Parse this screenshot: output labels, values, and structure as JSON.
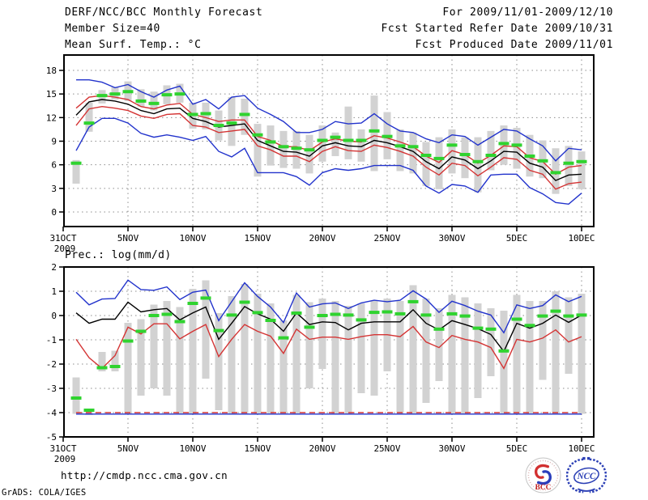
{
  "header": {
    "title": "DERF/NCC/BCC Monthly Forecast",
    "member_size": "Member Size=40",
    "for_range": "For 2009/11/01-2009/12/10",
    "refer_date": "Fcst Started Refer Date 2009/10/31",
    "produced_date": "Fcst Produced Date 2009/11/01"
  },
  "footer": {
    "url": "http://cmdp.ncc.cma.gov.cn",
    "credit": "GrADS: COLA/IGES"
  },
  "logos": {
    "bcc_label": "BCC",
    "ncc_label": "NCC"
  },
  "colors": {
    "blue": "#2233cc",
    "red": "#d43434",
    "black": "#000000",
    "green": "#2fd32f",
    "gray_bar": "#d2d2d2",
    "grid": "#8c8c8c"
  },
  "chart_data": [
    {
      "type": "line",
      "name": "surface-temperature-forecast",
      "title": "Mean Surf. Temp.: °C",
      "ylabel": "°C",
      "ylim": [
        -1.8,
        20
      ],
      "yticks": [
        0,
        3,
        6,
        9,
        12,
        15,
        18
      ],
      "grid": "dotted",
      "x_tick_labels": [
        "31OCT",
        "5NOV",
        "10NOV",
        "15NOV",
        "20NOV",
        "25NOV",
        "30NOV",
        "5DEC",
        "10DEC"
      ],
      "x_tick_days": [
        0,
        5,
        10,
        15,
        20,
        25,
        30,
        35,
        40
      ],
      "year_label": "2009",
      "dates": [
        "2009-11-01",
        "2009-11-02",
        "2009-11-03",
        "2009-11-04",
        "2009-11-05",
        "2009-11-06",
        "2009-11-07",
        "2009-11-08",
        "2009-11-09",
        "2009-11-10",
        "2009-11-11",
        "2009-11-12",
        "2009-11-13",
        "2009-11-14",
        "2009-11-15",
        "2009-11-16",
        "2009-11-17",
        "2009-11-18",
        "2009-11-19",
        "2009-11-20",
        "2009-11-21",
        "2009-11-22",
        "2009-11-23",
        "2009-11-24",
        "2009-11-25",
        "2009-11-26",
        "2009-11-27",
        "2009-11-28",
        "2009-11-29",
        "2009-11-30",
        "2009-12-01",
        "2009-12-02",
        "2009-12-03",
        "2009-12-04",
        "2009-12-05",
        "2009-12-06",
        "2009-12-07",
        "2009-12-08",
        "2009-12-09",
        "2009-12-10"
      ],
      "series": [
        {
          "name": "ensemble-max",
          "color": "blue",
          "values": [
            16.8,
            16.8,
            16.5,
            15.8,
            16.2,
            15.3,
            14.6,
            15.5,
            16.0,
            13.7,
            14.3,
            13.1,
            14.6,
            14.8,
            13.2,
            12.4,
            11.5,
            10.1,
            10.1,
            10.5,
            11.5,
            11.2,
            11.3,
            12.5,
            11.2,
            10.3,
            10.1,
            9.3,
            8.8,
            9.8,
            9.6,
            8.5,
            9.5,
            10.5,
            10.3,
            9.3,
            8.4,
            6.5,
            8.1,
            7.9
          ]
        },
        {
          "name": "upper-quartile",
          "color": "red",
          "values": [
            13.2,
            14.6,
            14.8,
            14.6,
            14.3,
            13.4,
            13.1,
            13.6,
            13.8,
            12.4,
            12.0,
            11.5,
            11.7,
            11.7,
            9.6,
            9.1,
            8.3,
            8.3,
            7.8,
            8.9,
            9.3,
            9.0,
            8.9,
            9.7,
            9.4,
            8.9,
            8.3,
            7.1,
            6.3,
            7.8,
            7.3,
            6.2,
            7.2,
            8.4,
            8.3,
            6.9,
            6.4,
            4.8,
            5.7,
            5.9
          ]
        },
        {
          "name": "ensemble-mean",
          "color": "black",
          "values": [
            12.3,
            14.0,
            14.3,
            14.1,
            13.7,
            12.9,
            12.5,
            13.1,
            13.2,
            11.9,
            11.5,
            10.8,
            11.0,
            11.2,
            9.1,
            8.4,
            7.7,
            7.6,
            7.1,
            8.4,
            8.8,
            8.4,
            8.3,
            9.1,
            8.8,
            8.3,
            7.7,
            6.4,
            5.5,
            7.0,
            6.6,
            5.5,
            6.5,
            7.7,
            7.6,
            6.2,
            5.7,
            4.0,
            4.7,
            4.8
          ]
        },
        {
          "name": "lower-quartile",
          "color": "red",
          "values": [
            11.0,
            13.1,
            13.4,
            13.2,
            12.9,
            12.2,
            11.9,
            12.4,
            12.5,
            11.0,
            10.8,
            10.1,
            10.3,
            10.5,
            8.4,
            7.9,
            7.1,
            7.1,
            6.4,
            7.7,
            8.3,
            7.8,
            7.7,
            8.5,
            8.2,
            7.7,
            7.1,
            5.7,
            4.7,
            6.2,
            5.9,
            4.6,
            5.7,
            6.9,
            6.7,
            5.3,
            4.8,
            2.9,
            3.6,
            3.8
          ]
        },
        {
          "name": "ensemble-min",
          "color": "blue",
          "values": [
            7.8,
            10.8,
            11.9,
            11.9,
            11.3,
            10.0,
            9.5,
            9.8,
            9.5,
            9.1,
            9.6,
            7.7,
            7.0,
            8.1,
            5.0,
            5.0,
            5.0,
            4.5,
            3.4,
            5.0,
            5.5,
            5.3,
            5.5,
            5.9,
            5.9,
            5.9,
            5.3,
            3.3,
            2.4,
            3.5,
            3.3,
            2.5,
            4.7,
            4.8,
            4.8,
            3.1,
            2.3,
            1.2,
            1.0,
            2.4
          ]
        }
      ],
      "bars": {
        "name": "ensemble-spread-bar",
        "color": "gray_bar",
        "lo": [
          3.6,
          10.2,
          13.8,
          14.3,
          14.1,
          13.4,
          12.9,
          13.7,
          13.9,
          10.6,
          10.5,
          9.1,
          8.4,
          9.8,
          4.5,
          5.9,
          5.6,
          5.5,
          4.9,
          6.4,
          7.1,
          6.7,
          6.4,
          5.2,
          6.7,
          5.2,
          4.9,
          3.3,
          2.9,
          4.9,
          4.3,
          2.5,
          5.3,
          6.0,
          5.5,
          4.5,
          4.3,
          2.3,
          3.3,
          2.9
        ],
        "hi": [
          6.6,
          13.9,
          15.5,
          15.9,
          16.6,
          15.6,
          15.3,
          16.1,
          16.3,
          13.9,
          13.9,
          12.9,
          14.6,
          14.4,
          11.2,
          11.0,
          10.3,
          10.3,
          9.8,
          11.0,
          10.1,
          13.4,
          10.5,
          14.8,
          12.7,
          10.5,
          10.1,
          8.9,
          9.5,
          10.5,
          9.5,
          9.5,
          10.3,
          11.0,
          10.7,
          9.8,
          9.1,
          8.1,
          8.4,
          7.7
        ]
      },
      "markers": {
        "name": "observation-marker",
        "color": "green",
        "values": [
          6.2,
          11.3,
          14.8,
          15.0,
          15.3,
          14.1,
          13.8,
          14.9,
          15.0,
          12.4,
          12.5,
          11.0,
          11.3,
          12.4,
          9.8,
          8.9,
          8.3,
          8.1,
          7.9,
          9.1,
          9.5,
          9.1,
          9.1,
          10.3,
          9.6,
          8.4,
          8.3,
          7.2,
          6.8,
          8.5,
          7.3,
          6.4,
          7.2,
          8.7,
          8.5,
          7.1,
          6.5,
          5.0,
          6.2,
          6.4
        ]
      }
    },
    {
      "type": "line",
      "name": "precipitation-forecast",
      "title": "Prec.: log(mm/d)",
      "ylabel": "log(mm/d)",
      "ylim": [
        -5,
        2
      ],
      "yticks": [
        2,
        1,
        0,
        -1,
        -2,
        -3,
        -4,
        -5
      ],
      "grid": "dotted",
      "x_tick_labels": [
        "31OCT",
        "5NOV",
        "10NOV",
        "15NOV",
        "20NOV",
        "25NOV",
        "30NOV",
        "5DEC",
        "10DEC"
      ],
      "x_tick_days": [
        0,
        5,
        10,
        15,
        20,
        25,
        30,
        35,
        40
      ],
      "year_label": "2009",
      "dates": [
        "2009-11-01",
        "2009-11-02",
        "2009-11-03",
        "2009-11-04",
        "2009-11-05",
        "2009-11-06",
        "2009-11-07",
        "2009-11-08",
        "2009-11-09",
        "2009-11-10",
        "2009-11-11",
        "2009-11-12",
        "2009-11-13",
        "2009-11-14",
        "2009-11-15",
        "2009-11-16",
        "2009-11-17",
        "2009-11-18",
        "2009-11-19",
        "2009-11-20",
        "2009-11-21",
        "2009-11-22",
        "2009-11-23",
        "2009-11-24",
        "2009-11-25",
        "2009-11-26",
        "2009-11-27",
        "2009-11-28",
        "2009-11-29",
        "2009-11-30",
        "2009-12-01",
        "2009-12-02",
        "2009-12-03",
        "2009-12-04",
        "2009-12-05",
        "2009-12-06",
        "2009-12-07",
        "2009-12-08",
        "2009-12-09",
        "2009-12-10"
      ],
      "series": [
        {
          "name": "ensemble-min-floor",
          "color": "blue",
          "flat": -4.06
        },
        {
          "name": "no-rain-floor",
          "color": "red",
          "flat": -4.0,
          "dash": true
        },
        {
          "name": "ensemble-max",
          "color": "blue",
          "values": [
            0.96,
            0.44,
            0.68,
            0.7,
            1.46,
            1.07,
            1.04,
            1.18,
            0.66,
            0.96,
            1.05,
            -0.21,
            0.57,
            1.35,
            0.79,
            0.35,
            -0.29,
            0.93,
            0.35,
            0.48,
            0.52,
            0.29,
            0.52,
            0.63,
            0.57,
            0.63,
            1.02,
            0.68,
            0.13,
            0.59,
            0.41,
            0.18,
            0.02,
            -0.71,
            0.44,
            0.29,
            0.41,
            0.85,
            0.57,
            0.79
          ]
        },
        {
          "name": "ensemble-mean",
          "color": "black",
          "values": [
            0.11,
            -0.32,
            -0.15,
            -0.15,
            0.55,
            0.15,
            0.24,
            0.29,
            -0.18,
            0.11,
            0.35,
            -0.98,
            -0.32,
            0.37,
            0.07,
            -0.15,
            -0.65,
            0.11,
            -0.37,
            -0.26,
            -0.29,
            -0.59,
            -0.32,
            -0.26,
            -0.26,
            -0.26,
            0.24,
            -0.32,
            -0.59,
            -0.21,
            -0.37,
            -0.54,
            -0.78,
            -1.48,
            -0.32,
            -0.52,
            -0.32,
            0.02,
            -0.28,
            0.02
          ]
        },
        {
          "name": "lower-quartile",
          "color": "red",
          "values": [
            -0.98,
            -1.74,
            -2.18,
            -1.65,
            -0.48,
            -0.76,
            -0.34,
            -0.34,
            -0.96,
            -0.65,
            -0.37,
            -1.69,
            -0.98,
            -0.37,
            -0.65,
            -0.85,
            -1.56,
            -0.56,
            -0.98,
            -0.89,
            -0.89,
            -0.98,
            -0.87,
            -0.79,
            -0.79,
            -0.87,
            -0.45,
            -1.09,
            -1.32,
            -0.82,
            -0.98,
            -1.09,
            -1.32,
            -2.18,
            -0.98,
            -1.09,
            -0.93,
            -0.59,
            -1.09,
            -0.87
          ]
        }
      ],
      "bars": {
        "name": "ensemble-spread-bar",
        "color": "gray_bar",
        "lo": [
          -4.05,
          -4.1,
          -2.3,
          -2.3,
          -4.05,
          -3.3,
          -3.0,
          -3.3,
          -4.05,
          -4.05,
          -2.6,
          -3.9,
          -4.05,
          -4.05,
          -4.05,
          -4.05,
          -4.05,
          -4.05,
          -3.0,
          -2.2,
          -4.05,
          -4.05,
          -3.2,
          -3.3,
          -2.3,
          -4.05,
          -4.05,
          -3.6,
          -2.7,
          -4.05,
          -4.05,
          -3.4,
          -2.5,
          -4.05,
          -4.05,
          -4.05,
          -2.65,
          -4.05,
          -2.4,
          -4.05
        ],
        "hi": [
          -2.55,
          -3.85,
          -1.5,
          -1.45,
          -0.3,
          -0.15,
          0.45,
          0.6,
          0.35,
          1.1,
          1.45,
          0.1,
          0.8,
          1.3,
          0.9,
          0.5,
          -0.2,
          0.85,
          0.55,
          0.7,
          0.6,
          0.4,
          0.5,
          0.6,
          0.7,
          0.6,
          1.25,
          0.7,
          0.3,
          0.85,
          0.75,
          0.5,
          0.3,
          0.2,
          0.85,
          0.6,
          0.6,
          1.0,
          0.75,
          0.9
        ]
      },
      "markers": {
        "name": "observation-marker",
        "color": "green",
        "values": [
          -3.4,
          -3.9,
          -2.15,
          -2.1,
          -1.05,
          -0.65,
          0.0,
          0.05,
          -0.25,
          0.5,
          0.72,
          -0.62,
          0.02,
          0.55,
          0.12,
          -0.2,
          -0.92,
          0.1,
          -0.48,
          0.0,
          0.05,
          0.02,
          -0.18,
          0.13,
          0.15,
          0.07,
          0.57,
          0.02,
          -0.56,
          0.07,
          -0.02,
          -0.52,
          -0.56,
          -1.46,
          -0.15,
          -0.41,
          -0.02,
          0.18,
          -0.02,
          0.02
        ]
      }
    }
  ]
}
